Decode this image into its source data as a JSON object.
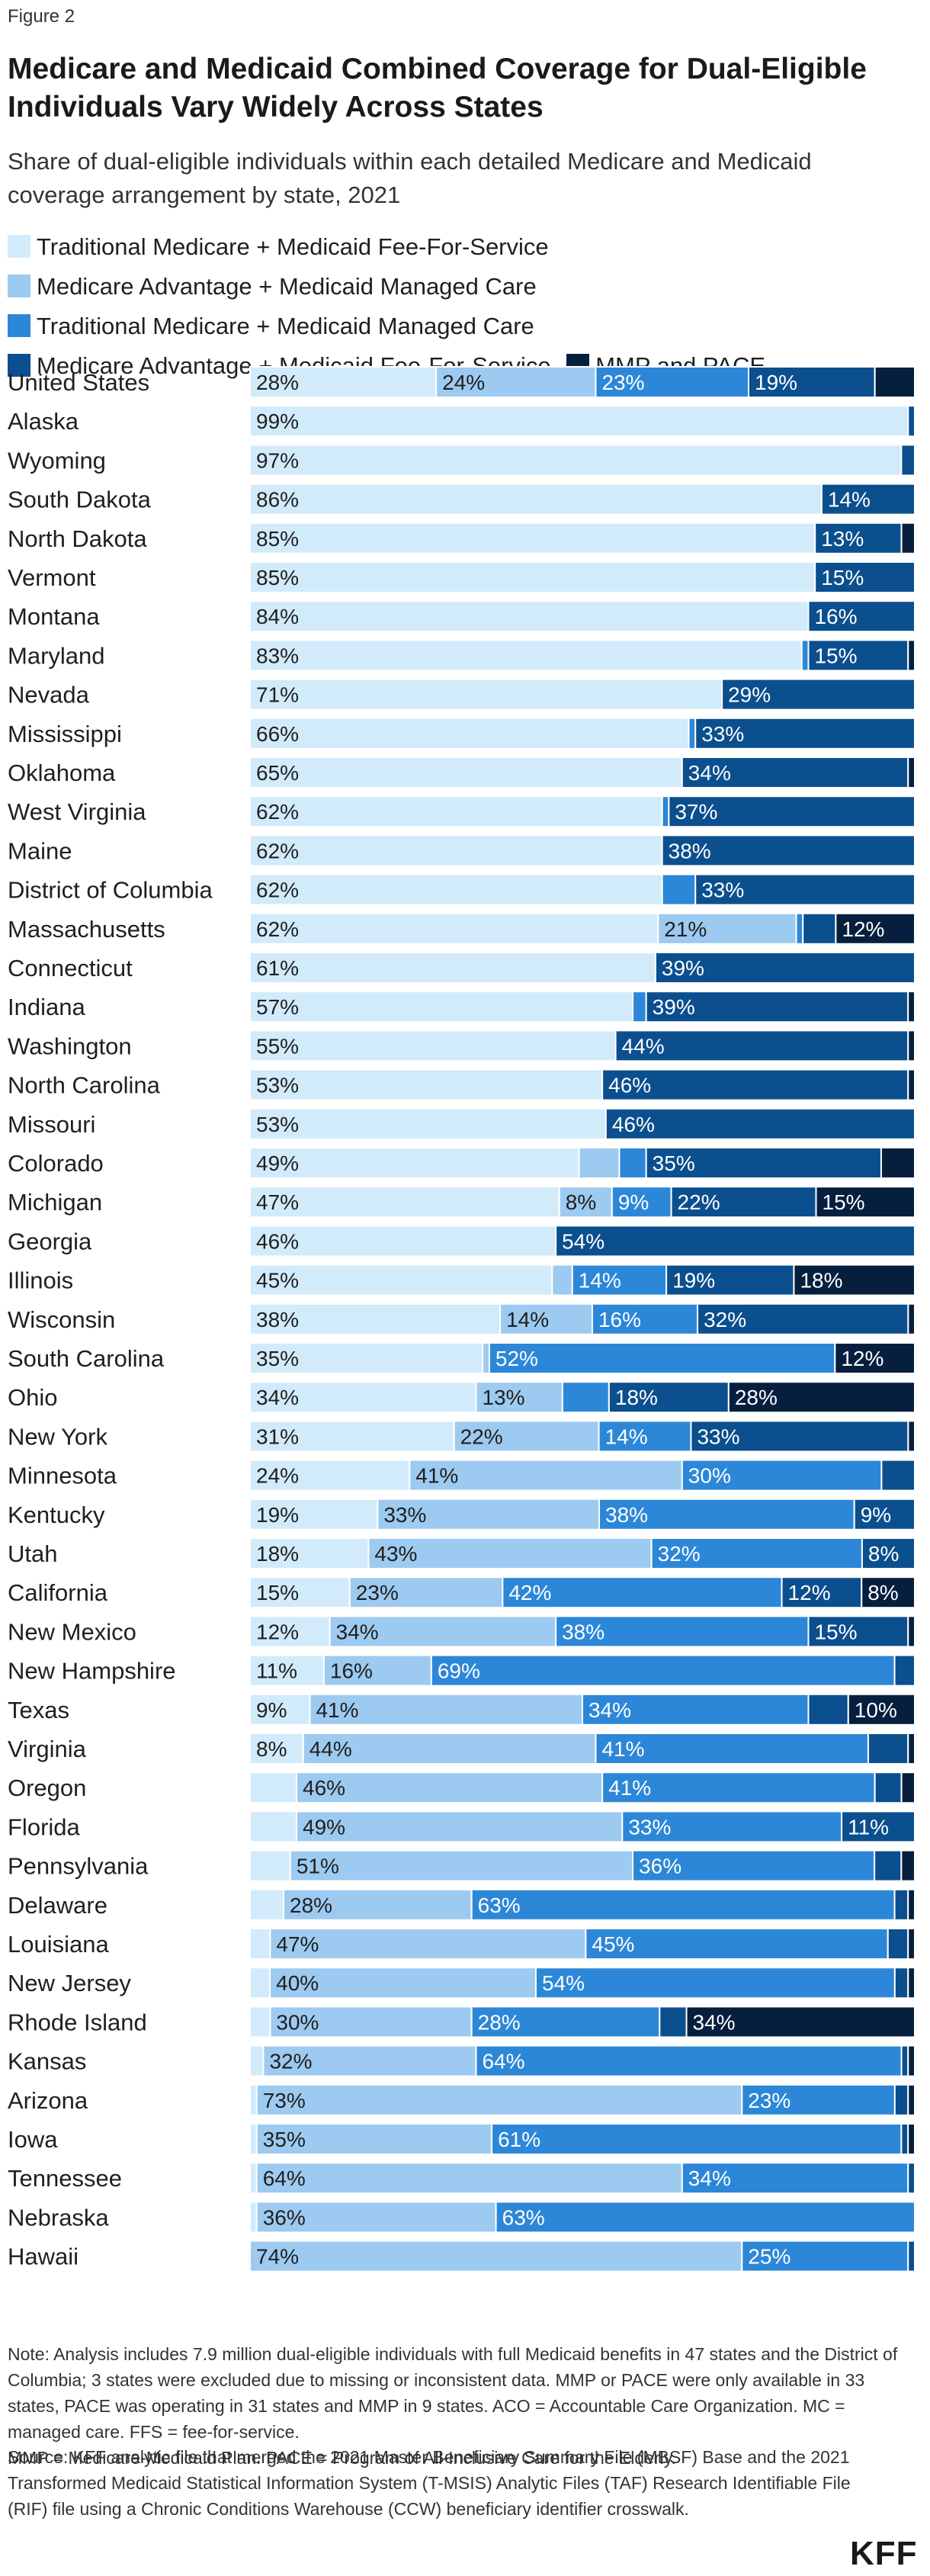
{
  "figure_label": "Figure 2",
  "chart_data": {
    "type": "bar",
    "orientation": "horizontal",
    "stacked": true,
    "title": "Medicare and Medicaid Combined Coverage for Dual-Eligible Individuals Vary Widely Across States",
    "subtitle": "Share of dual-eligible individuals within each detailed Medicare and Medicaid coverage arrangement by state, 2021",
    "xlim": [
      0,
      100
    ],
    "grid": false,
    "legend_position": "top",
    "series": [
      {
        "name": "Traditional Medicare + Medicaid Fee-For-Service",
        "color": "#d2ebfb",
        "label_color": "#1f1f1f"
      },
      {
        "name": "Medicare Advantage + Medicaid Managed Care",
        "color": "#9dcaf0",
        "label_color": "#1f1f1f"
      },
      {
        "name": "Traditional Medicare + Medicaid Managed Care",
        "color": "#2d87d8",
        "label_color": "#ffffff"
      },
      {
        "name": "Medicare Advantage + Medicaid Fee-For-Service",
        "color": "#0b4f8e",
        "label_color": "#ffffff"
      },
      {
        "name": "MMP and PACE",
        "color": "#061f3f",
        "label_color": "#ffffff"
      }
    ],
    "categories": [
      "United States",
      "Alaska",
      "Wyoming",
      "South Dakota",
      "North Dakota",
      "Vermont",
      "Montana",
      "Maryland",
      "Nevada",
      "Mississippi",
      "Oklahoma",
      "West Virginia",
      "Maine",
      "District of Columbia",
      "Massachusetts",
      "Connecticut",
      "Indiana",
      "Washington",
      "North Carolina",
      "Missouri",
      "Colorado",
      "Michigan",
      "Georgia",
      "Illinois",
      "Wisconsin",
      "South Carolina",
      "Ohio",
      "New York",
      "Minnesota",
      "Kentucky",
      "Utah",
      "California",
      "New Mexico",
      "New Hampshire",
      "Texas",
      "Virginia",
      "Oregon",
      "Florida",
      "Pennsylvania",
      "Delaware",
      "Louisiana",
      "New Jersey",
      "Rhode Island",
      "Kansas",
      "Arizona",
      "Iowa",
      "Tennessee",
      "Nebraska",
      "Hawaii"
    ],
    "values": [
      [
        28,
        24,
        23,
        19,
        6
      ],
      [
        99,
        0,
        0,
        1,
        0
      ],
      [
        97,
        0,
        0,
        2,
        0
      ],
      [
        86,
        0,
        0,
        14,
        0
      ],
      [
        85,
        0,
        0,
        13,
        2
      ],
      [
        85,
        0,
        0,
        15,
        0
      ],
      [
        84,
        0,
        0,
        16,
        0
      ],
      [
        83,
        0,
        1,
        15,
        1
      ],
      [
        71,
        0,
        0,
        29,
        0
      ],
      [
        66,
        0,
        1,
        33,
        0
      ],
      [
        65,
        0,
        0,
        34,
        1
      ],
      [
        62,
        0,
        1,
        37,
        0
      ],
      [
        62,
        0,
        0,
        38,
        0
      ],
      [
        62,
        0,
        5,
        33,
        0
      ],
      [
        62,
        21,
        1,
        5,
        12
      ],
      [
        61,
        0,
        0,
        39,
        0
      ],
      [
        57,
        0,
        2,
        39,
        1
      ],
      [
        55,
        0,
        0,
        44,
        1
      ],
      [
        53,
        0,
        0,
        46,
        1
      ],
      [
        53,
        0,
        0,
        46,
        0
      ],
      [
        49,
        6,
        4,
        35,
        5
      ],
      [
        47,
        8,
        9,
        22,
        15
      ],
      [
        46,
        0,
        0,
        54,
        0
      ],
      [
        45,
        3,
        14,
        19,
        18
      ],
      [
        38,
        14,
        16,
        32,
        1
      ],
      [
        35,
        1,
        52,
        0,
        12
      ],
      [
        34,
        13,
        7,
        18,
        28
      ],
      [
        31,
        22,
        14,
        33,
        1
      ],
      [
        24,
        41,
        30,
        5,
        0
      ],
      [
        19,
        33,
        38,
        9,
        0
      ],
      [
        18,
        43,
        32,
        8,
        0
      ],
      [
        15,
        23,
        42,
        12,
        8
      ],
      [
        12,
        34,
        38,
        15,
        1
      ],
      [
        11,
        16,
        69,
        3,
        0
      ],
      [
        9,
        41,
        34,
        6,
        10
      ],
      [
        8,
        44,
        41,
        6,
        1
      ],
      [
        7,
        46,
        41,
        4,
        2
      ],
      [
        7,
        49,
        33,
        11,
        0
      ],
      [
        6,
        51,
        36,
        4,
        2
      ],
      [
        5,
        28,
        63,
        2,
        1
      ],
      [
        3,
        47,
        45,
        3,
        1
      ],
      [
        3,
        40,
        54,
        2,
        1
      ],
      [
        3,
        30,
        28,
        4,
        34
      ],
      [
        2,
        32,
        64,
        1,
        1
      ],
      [
        1,
        73,
        23,
        2,
        1
      ],
      [
        1,
        35,
        61,
        1,
        1
      ],
      [
        1,
        64,
        34,
        1,
        0
      ],
      [
        1,
        36,
        63,
        0,
        0
      ],
      [
        0,
        74,
        25,
        1,
        0
      ]
    ]
  },
  "notes": [
    "Note: Analysis includes 7.9 million dual-eligible individuals with full Medicaid benefits in 47 states and the District of Columbia; 3 states were excluded due to missing or inconsistent data. MMP or PACE were only available in 33 states, PACE was operating in 31 states and MMP in 9 states. ACO = Accountable Care Organization. MC = managed care. FFS = fee-for-service.",
    "MMP = Medicare-Medicaid Plan. PACE = Program of All-Inclusive Care for the Elderly."
  ],
  "source": "Source: KFF analytic file that merged the 2021 Master Beneficiary Summary File (MBSF) Base and the 2021 Transformed Medicaid Statistical Information System (T-MSIS) Analytic Files (TAF) Research Identifiable File (RIF) file using a Chronic Conditions Warehouse (CCW) beneficiary identifier crosswalk.",
  "logo": "KFF"
}
